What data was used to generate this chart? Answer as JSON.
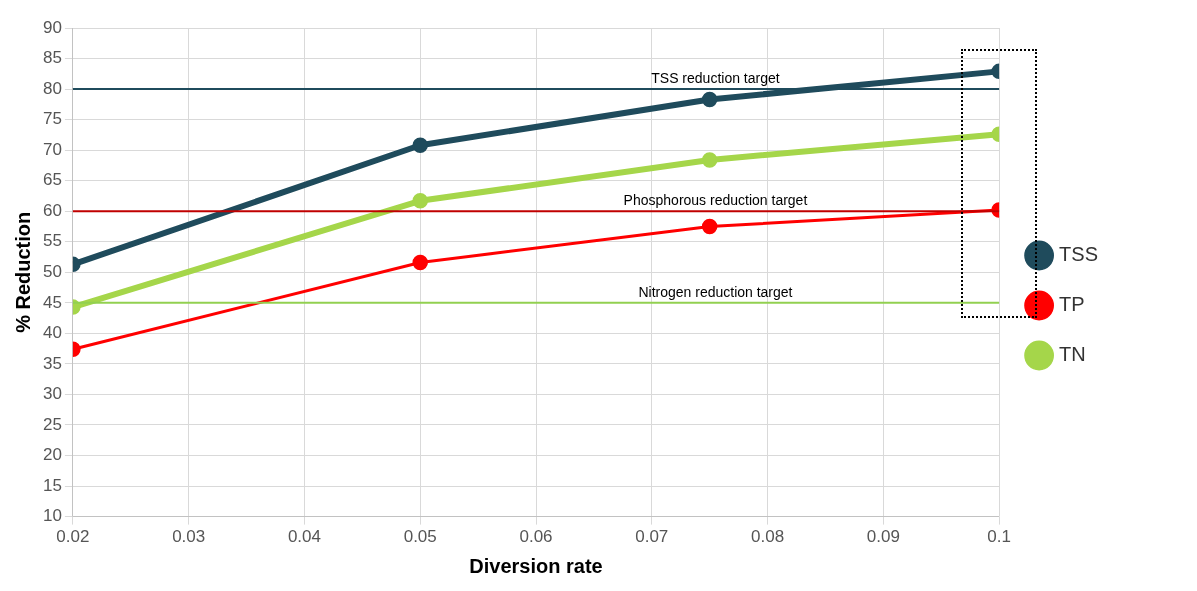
{
  "chart_data": {
    "type": "line",
    "xlabel": "Diversion rate",
    "ylabel": "% Reduction",
    "x": [
      0.02,
      0.05,
      0.075,
      0.1
    ],
    "series": [
      {
        "name": "TSS",
        "color": "#1f4b5c",
        "values": [
          51.3,
          70.8,
          78.3,
          82.9
        ]
      },
      {
        "name": "TP",
        "color": "#ff0000",
        "values": [
          37.4,
          51.6,
          57.5,
          60.2
        ]
      },
      {
        "name": "TN",
        "color": "#a5d64a",
        "values": [
          44.3,
          61.7,
          68.4,
          72.6
        ]
      }
    ],
    "xlim": [
      0.02,
      0.1
    ],
    "xticks": [
      0.02,
      0.03,
      0.04,
      0.05,
      0.06,
      0.07,
      0.08,
      0.09,
      0.1
    ],
    "ylim": [
      10,
      90
    ],
    "yticks": [
      10,
      15,
      20,
      25,
      30,
      35,
      40,
      45,
      50,
      55,
      60,
      65,
      70,
      75,
      80,
      85,
      90
    ],
    "ref_lines": [
      {
        "axis": "y",
        "value": 80,
        "label": "TSS reduction target",
        "color": "#1f4b5c"
      },
      {
        "axis": "y",
        "value": 60,
        "label": "Phosphorous reduction target",
        "color": "#c00000"
      },
      {
        "axis": "y",
        "value": 45,
        "label": "Nitrogen reduction target",
        "color": "#92d050"
      }
    ],
    "grid": true,
    "legend": "right",
    "marker": "circle"
  }
}
